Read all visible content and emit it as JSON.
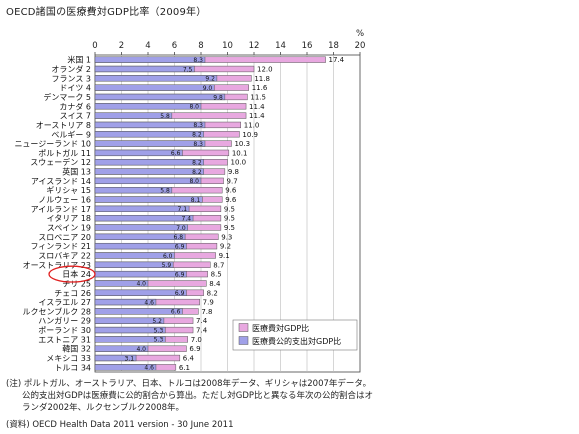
{
  "title": "OECD諸国の医療費対GDP比率（2009年）",
  "chart_data": {
    "type": "bar",
    "orientation": "horizontal",
    "unit": "%",
    "xlim": [
      0,
      20
    ],
    "ticks": [
      0,
      2,
      4,
      6,
      8,
      10,
      12,
      14,
      16,
      18,
      20
    ],
    "categories": [
      "米国 1",
      "オランダ 2",
      "フランス 3",
      "ドイツ 4",
      "デンマーク 5",
      "カナダ 6",
      "スイス 7",
      "オーストリア 8",
      "ベルギー 9",
      "ニュージーランド 10",
      "ポルトガル 11",
      "スウェーデン 12",
      "英国 13",
      "アイスランド 14",
      "ギリシャ 15",
      "ノルウェー 16",
      "アイルランド 17",
      "イタリア 18",
      "スペイン 19",
      "スロベニア 20",
      "フィンランド 21",
      "スロバキア 22",
      "オーストラリア 23",
      "日本 24",
      "チリ 25",
      "チェコ 26",
      "イスラエル 27",
      "ルクセンブルク 28",
      "ハンガリー 29",
      "ポーランド 30",
      "エストニア 31",
      "韓国 32",
      "メキシコ 33",
      "トルコ 34"
    ],
    "series": [
      {
        "name": "医療費対GDP比",
        "color": "#e8a8e0",
        "values": [
          17.4,
          12.0,
          11.8,
          11.6,
          11.5,
          11.4,
          11.4,
          11.0,
          10.9,
          10.3,
          10.1,
          10.0,
          9.8,
          9.7,
          9.6,
          9.6,
          9.5,
          9.5,
          9.5,
          9.3,
          9.2,
          9.1,
          8.7,
          8.5,
          8.4,
          8.2,
          7.9,
          7.8,
          7.4,
          7.4,
          7.0,
          6.9,
          6.4,
          6.1
        ]
      },
      {
        "name": "医療費公的支出対GDP比",
        "color": "#a0a0e8",
        "values": [
          8.3,
          7.5,
          9.2,
          9.0,
          9.8,
          8.0,
          5.8,
          8.3,
          8.2,
          8.3,
          6.6,
          8.2,
          8.2,
          8.0,
          5.8,
          8.1,
          7.1,
          7.4,
          7.0,
          6.8,
          6.9,
          6.0,
          5.9,
          6.9,
          4.0,
          6.9,
          4.6,
          6.6,
          5.2,
          5.3,
          5.3,
          4.0,
          3.1,
          4.6
        ]
      }
    ],
    "annotation": {
      "highlighted_category": "日本 24",
      "shape": "ellipse",
      "color": "#e02020"
    },
    "legend_placement": "bottom-right",
    "grid": true
  },
  "notes": {
    "line1": "(注) ポルトガル、オーストラリア、日本、トルコは2008年データ、ギリシャは2007年データ。",
    "line2": "公的支出対GDPは医療費に公的割合から算出。ただし対GDP比と異なる年次の公的割合はオ",
    "line3": "ランダ2002年、ルクセンブルク2008年。",
    "source": "(資料) OECD Health Data 2011   version - 30 June 2011"
  }
}
